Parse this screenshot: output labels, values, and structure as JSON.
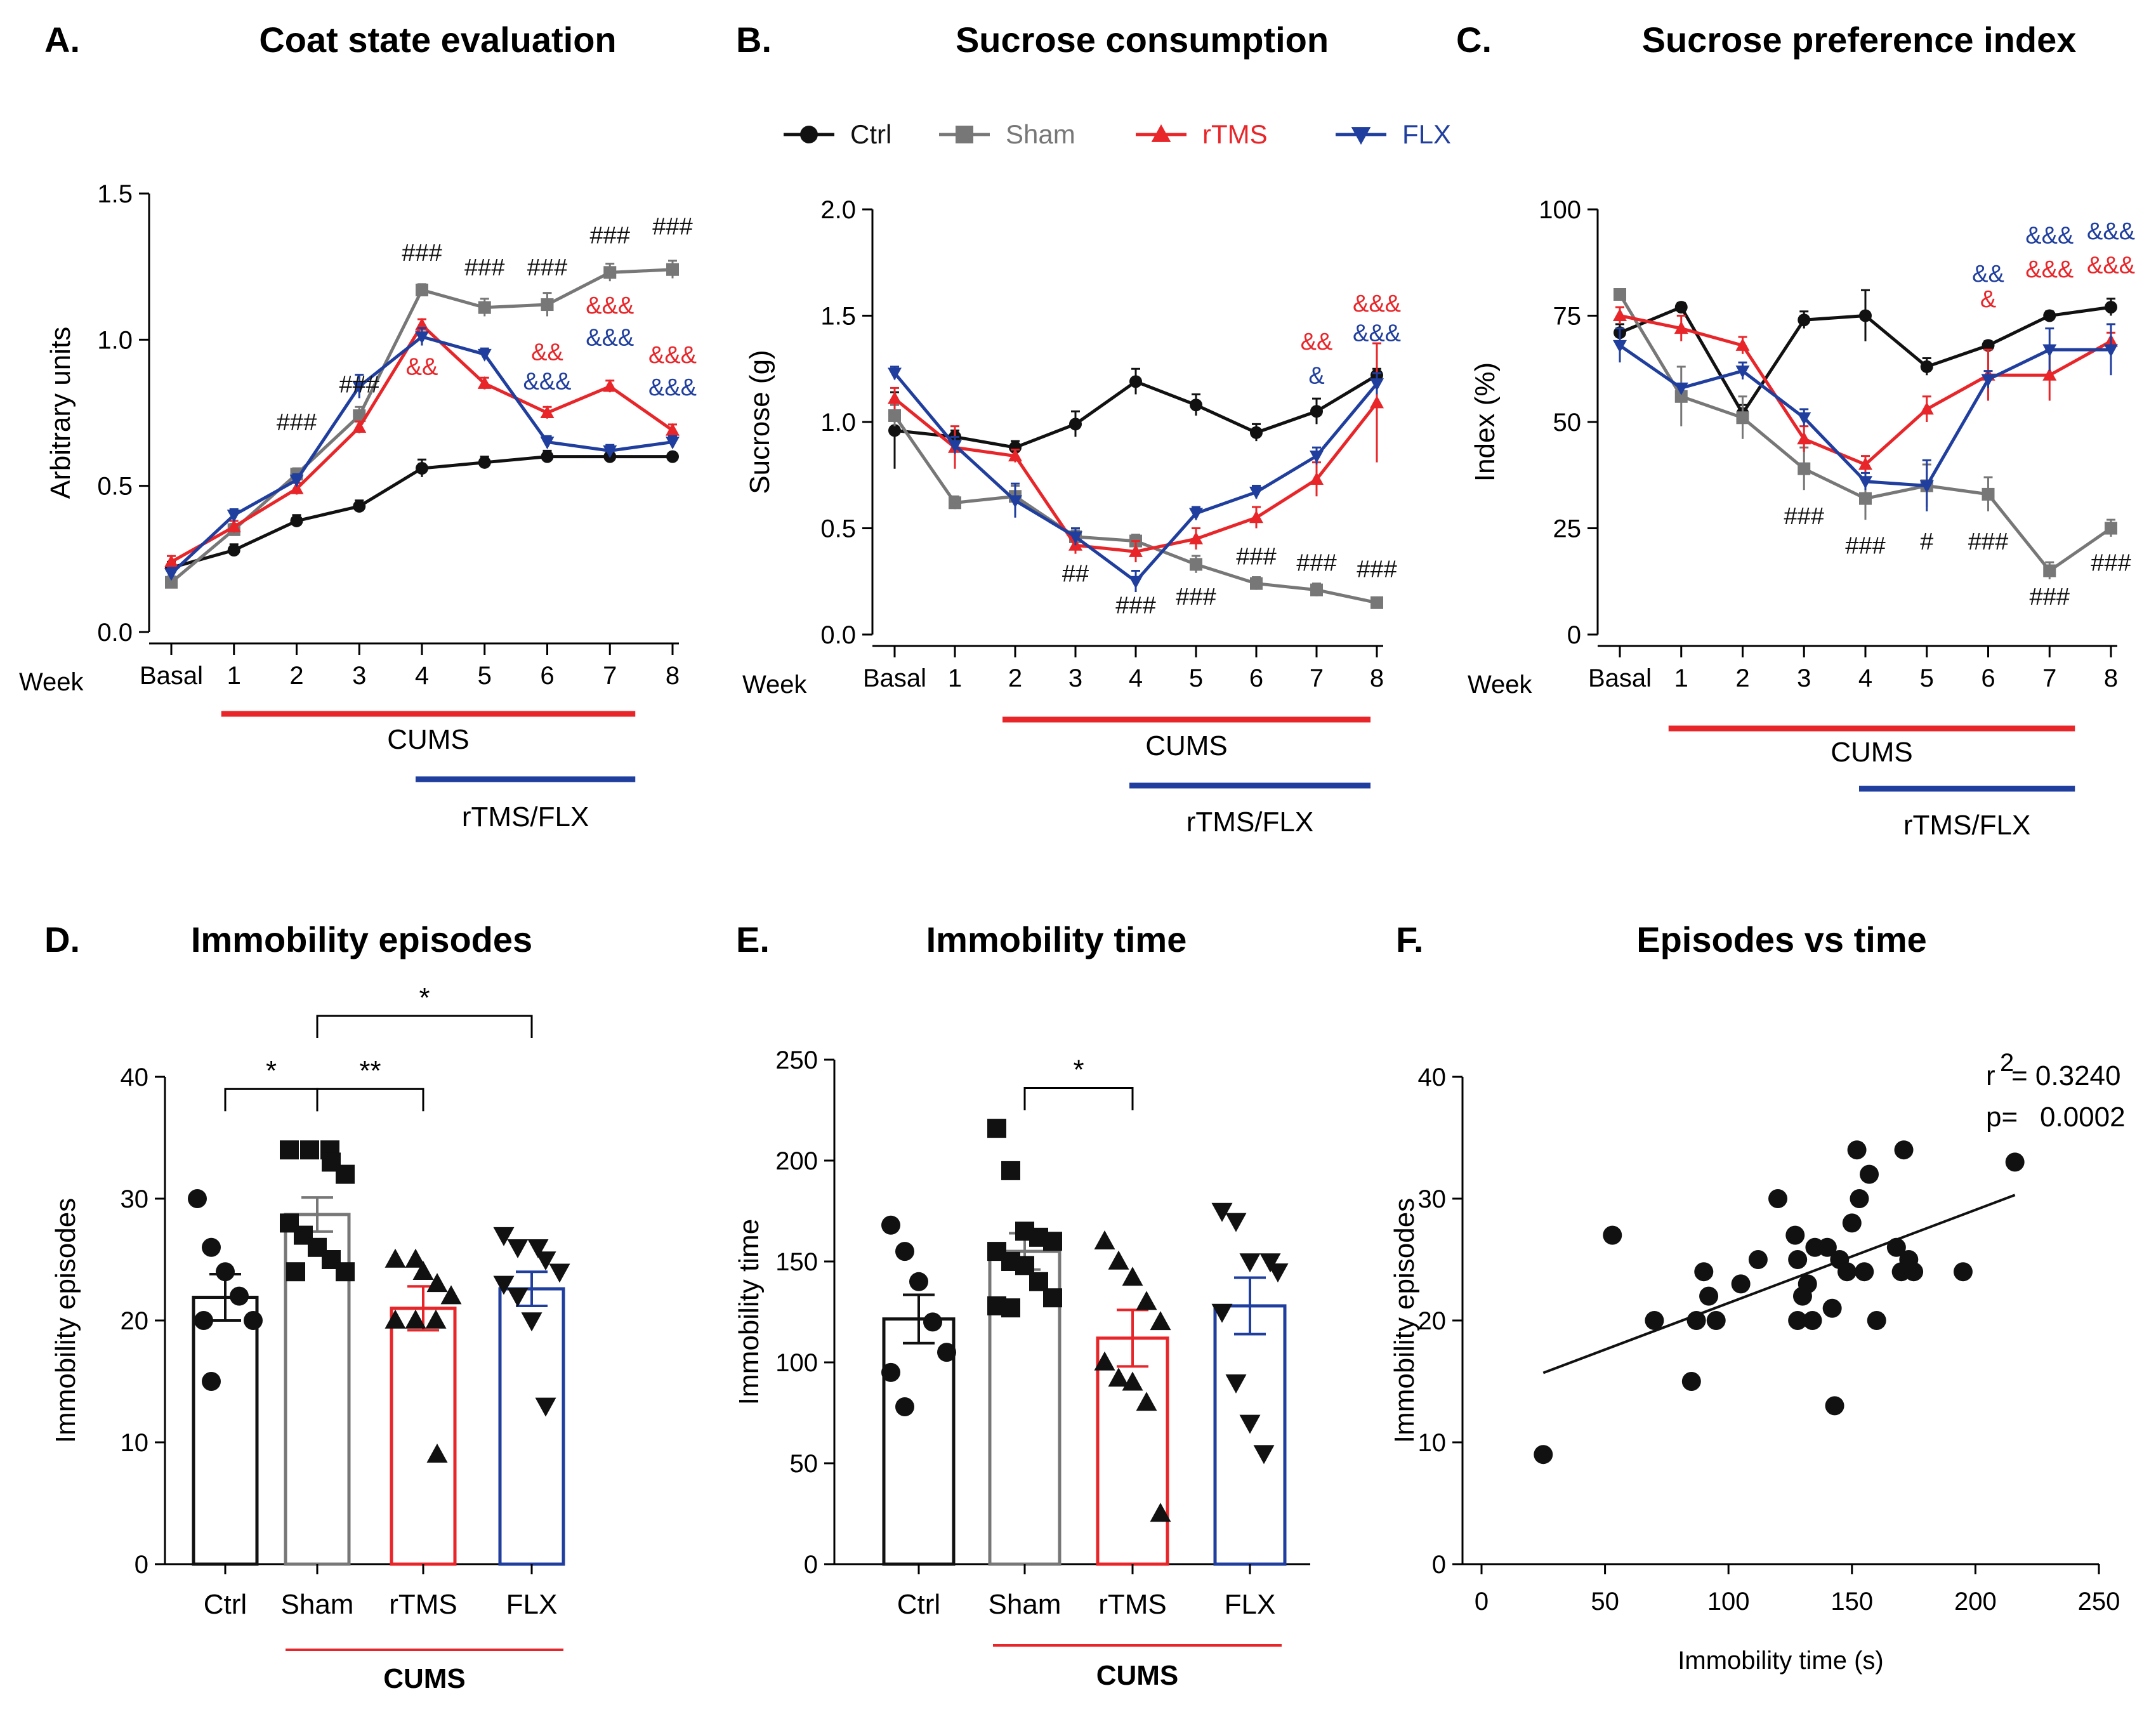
{
  "colors": {
    "ctrl": "#111111",
    "sham": "#777777",
    "rtms": "#e8262a",
    "flx": "#1f3e9e",
    "axis": "#000000"
  },
  "legend": [
    {
      "key": "ctrl",
      "label": "Ctrl"
    },
    {
      "key": "sham",
      "label": "Sham"
    },
    {
      "key": "rtms",
      "label": "rTMS"
    },
    {
      "key": "flx",
      "label": "FLX"
    }
  ],
  "chart_data": [
    {
      "id": "A",
      "panel_label": "A.",
      "type": "line",
      "title": "Coat state evaluation",
      "xlabel": "Week",
      "ylabel": "Arbitrary units",
      "categories": [
        "Basal",
        "1",
        "2",
        "3",
        "4",
        "5",
        "6",
        "7",
        "8"
      ],
      "ylim": [
        0,
        1.5
      ],
      "yticks": [
        0.0,
        0.5,
        1.0,
        1.5
      ],
      "ytick_labels": [
        "0.0",
        "0.5",
        "1.0",
        "1.5"
      ],
      "series": [
        {
          "name": "Ctrl",
          "key": "ctrl",
          "values": [
            0.22,
            0.28,
            0.38,
            0.43,
            0.56,
            0.58,
            0.6,
            0.6,
            0.6
          ],
          "errors": [
            0.02,
            0.02,
            0.02,
            0.02,
            0.03,
            0.02,
            0.02,
            0.02,
            0.01
          ]
        },
        {
          "name": "Sham",
          "key": "sham",
          "values": [
            0.17,
            0.35,
            0.54,
            0.74,
            1.17,
            1.11,
            1.12,
            1.23,
            1.24
          ],
          "errors": [
            0.02,
            0.02,
            0.02,
            0.03,
            0.02,
            0.03,
            0.04,
            0.03,
            0.03
          ]
        },
        {
          "name": "rTMS",
          "key": "rtms",
          "values": [
            0.24,
            0.36,
            0.49,
            0.7,
            1.05,
            0.85,
            0.75,
            0.84,
            0.69
          ],
          "errors": [
            0.02,
            0.02,
            0.02,
            0.02,
            0.02,
            0.02,
            0.02,
            0.02,
            0.02
          ]
        },
        {
          "name": "FLX",
          "key": "flx",
          "values": [
            0.2,
            0.4,
            0.52,
            0.84,
            1.01,
            0.95,
            0.65,
            0.62,
            0.65
          ],
          "errors": [
            0.02,
            0.02,
            0.02,
            0.04,
            0.03,
            0.02,
            0.02,
            0.02,
            0.02
          ]
        }
      ],
      "annotations": [
        {
          "text": "###",
          "x": "2",
          "y": 0.69,
          "color": "ctrl"
        },
        {
          "text": "###",
          "x": "3",
          "y": 0.82,
          "color": "ctrl"
        },
        {
          "text": "###",
          "x": "4",
          "y": 1.27,
          "color": "ctrl"
        },
        {
          "text": "###",
          "x": "5",
          "y": 1.22,
          "color": "ctrl"
        },
        {
          "text": "###",
          "x": "6",
          "y": 1.22,
          "color": "ctrl"
        },
        {
          "text": "###",
          "x": "7",
          "y": 1.33,
          "color": "ctrl"
        },
        {
          "text": "###",
          "x": "8",
          "y": 1.36,
          "color": "ctrl"
        },
        {
          "text": "&&",
          "x": "4",
          "y": 0.88,
          "color": "rtms"
        },
        {
          "text": "&&",
          "x": "6",
          "y": 0.93,
          "color": "rtms"
        },
        {
          "text": "&&&",
          "x": "6",
          "y": 0.83,
          "color": "flx"
        },
        {
          "text": "&&&",
          "x": "7",
          "y": 1.09,
          "color": "rtms"
        },
        {
          "text": "&&&",
          "x": "7",
          "y": 0.98,
          "color": "flx"
        },
        {
          "text": "&&&",
          "x": "8",
          "y": 0.92,
          "color": "rtms"
        },
        {
          "text": "&&&",
          "x": "8",
          "y": 0.81,
          "color": "flx"
        }
      ],
      "bars": [
        {
          "label": "CUMS",
          "from": "1",
          "to": "7",
          "color": "rtms"
        },
        {
          "label": "rTMS/FLX",
          "from": "4",
          "to": "7",
          "color": "flx"
        }
      ]
    },
    {
      "id": "B",
      "panel_label": "B.",
      "type": "line",
      "title": "Sucrose consumption",
      "xlabel": "Week",
      "ylabel": "Sucrose (g)",
      "categories": [
        "Basal",
        "1",
        "2",
        "3",
        "4",
        "5",
        "6",
        "7",
        "8"
      ],
      "ylim": [
        0,
        2.0
      ],
      "yticks": [
        0.0,
        0.5,
        1.0,
        1.5,
        2.0
      ],
      "ytick_labels": [
        "0.0",
        "0.5",
        "1.0",
        "1.5",
        "2.0"
      ],
      "series": [
        {
          "name": "Ctrl",
          "key": "ctrl",
          "values": [
            0.96,
            0.93,
            0.88,
            0.99,
            1.19,
            1.08,
            0.95,
            1.05,
            1.22
          ],
          "errors": [
            0.18,
            0.03,
            0.03,
            0.06,
            0.06,
            0.05,
            0.04,
            0.06,
            0.03
          ]
        },
        {
          "name": "Sham",
          "key": "sham",
          "values": [
            1.03,
            0.62,
            0.65,
            0.46,
            0.44,
            0.33,
            0.24,
            0.21,
            0.15
          ],
          "errors": [
            0.05,
            0.03,
            0.05,
            0.03,
            0.03,
            0.04,
            0.03,
            0.03,
            0.02
          ]
        },
        {
          "name": "rTMS",
          "key": "rtms",
          "values": [
            1.11,
            0.88,
            0.84,
            0.42,
            0.39,
            0.45,
            0.55,
            0.73,
            1.09
          ],
          "errors": [
            0.05,
            0.1,
            0.03,
            0.04,
            0.05,
            0.05,
            0.05,
            0.08,
            0.28
          ]
        },
        {
          "name": "FLX",
          "key": "flx",
          "values": [
            1.23,
            0.89,
            0.63,
            0.46,
            0.25,
            0.57,
            0.67,
            0.84,
            1.18
          ],
          "errors": [
            0.03,
            0.04,
            0.08,
            0.04,
            0.05,
            0.03,
            0.03,
            0.04,
            0.05
          ]
        }
      ],
      "annotations": [
        {
          "text": "##",
          "x": "3",
          "y": 0.25,
          "color": "ctrl"
        },
        {
          "text": "###",
          "x": "4",
          "y": 0.1,
          "color": "ctrl"
        },
        {
          "text": "###",
          "x": "5",
          "y": 0.14,
          "color": "ctrl"
        },
        {
          "text": "###",
          "x": "6",
          "y": 0.33,
          "color": "ctrl"
        },
        {
          "text": "###",
          "x": "7",
          "y": 0.3,
          "color": "ctrl"
        },
        {
          "text": "###",
          "x": "8",
          "y": 0.27,
          "color": "ctrl"
        },
        {
          "text": "&&",
          "x": "7",
          "y": 1.34,
          "color": "rtms"
        },
        {
          "text": "&",
          "x": "7",
          "y": 1.18,
          "color": "flx"
        },
        {
          "text": "&&&",
          "x": "8",
          "y": 1.52,
          "color": "rtms"
        },
        {
          "text": "&&&",
          "x": "8",
          "y": 1.38,
          "color": "flx"
        }
      ],
      "bars": [
        {
          "label": "CUMS",
          "from": "2",
          "to": "8",
          "color": "rtms"
        },
        {
          "label": "rTMS/FLX",
          "from": "4",
          "to": "8",
          "color": "flx"
        }
      ]
    },
    {
      "id": "C",
      "panel_label": "C.",
      "type": "line",
      "title": "Sucrose preference index",
      "xlabel": "Week",
      "ylabel": "Index (%)",
      "categories": [
        "Basal",
        "1",
        "2",
        "3",
        "4",
        "5",
        "6",
        "7",
        "8"
      ],
      "ylim": [
        0,
        100
      ],
      "yticks": [
        0,
        25,
        50,
        75,
        100
      ],
      "ytick_labels": [
        "0",
        "25",
        "50",
        "75",
        "100"
      ],
      "series": [
        {
          "name": "Ctrl",
          "key": "ctrl",
          "values": [
            71,
            77,
            52,
            74,
            75,
            63,
            68,
            75,
            77
          ],
          "errors": [
            2,
            1,
            2,
            2,
            6,
            2,
            1,
            1,
            2
          ]
        },
        {
          "name": "Sham",
          "key": "sham",
          "values": [
            80,
            56,
            51,
            39,
            32,
            35,
            33,
            15,
            25
          ],
          "errors": [
            1,
            7,
            5,
            5,
            5,
            5,
            4,
            2,
            2
          ]
        },
        {
          "name": "rTMS",
          "key": "rtms",
          "values": [
            75,
            72,
            68,
            46,
            40,
            53,
            61,
            61,
            69
          ],
          "errors": [
            2,
            3,
            2,
            3,
            2,
            3,
            6,
            6,
            2
          ]
        },
        {
          "name": "FLX",
          "key": "flx",
          "values": [
            68,
            58,
            62,
            51,
            36,
            35,
            60,
            67,
            67
          ],
          "errors": [
            4,
            1,
            2,
            2,
            2,
            6,
            2,
            5,
            6
          ]
        }
      ],
      "annotations": [
        {
          "text": "###",
          "x": "3",
          "y": 26,
          "color": "ctrl"
        },
        {
          "text": "###",
          "x": "4",
          "y": 19,
          "color": "ctrl"
        },
        {
          "text": "#",
          "x": "5",
          "y": 20,
          "color": "ctrl"
        },
        {
          "text": "###",
          "x": "6",
          "y": 20,
          "color": "ctrl"
        },
        {
          "text": "###",
          "x": "7",
          "y": 7,
          "color": "ctrl"
        },
        {
          "text": "###",
          "x": "8",
          "y": 15,
          "color": "ctrl"
        },
        {
          "text": "&&",
          "x": "6",
          "y": 83,
          "color": "flx"
        },
        {
          "text": "&",
          "x": "6",
          "y": 77,
          "color": "rtms"
        },
        {
          "text": "&&&",
          "x": "7",
          "y": 92,
          "color": "flx"
        },
        {
          "text": "&&&",
          "x": "7",
          "y": 84,
          "color": "rtms"
        },
        {
          "text": "&&&",
          "x": "8",
          "y": 93,
          "color": "flx"
        },
        {
          "text": "&&&",
          "x": "8",
          "y": 85,
          "color": "rtms"
        }
      ],
      "bars": [
        {
          "label": "CUMS",
          "from": "1",
          "to": "7",
          "color": "rtms"
        },
        {
          "label": "rTMS/FLX",
          "from": "4",
          "to": "7",
          "color": "flx"
        }
      ]
    },
    {
      "id": "D",
      "panel_label": "D.",
      "type": "bar",
      "title": "Immobility episodes",
      "xlabel": "",
      "ylabel": "Immobility episodes",
      "categories": [
        "Ctrl",
        "Sham",
        "rTMS",
        "FLX"
      ],
      "ylim": [
        0,
        40
      ],
      "yticks": [
        0,
        10,
        20,
        30,
        40
      ],
      "ytick_labels": [
        "0",
        "10",
        "20",
        "30",
        "40"
      ],
      "groups": [
        {
          "name": "Ctrl",
          "key": "ctrl",
          "mean": 21.9,
          "sem": 1.9,
          "marker": "circle",
          "points": [
            30,
            26,
            24,
            22,
            20,
            20,
            15
          ]
        },
        {
          "name": "Sham",
          "key": "sham",
          "mean": 28.7,
          "sem": 1.4,
          "marker": "square",
          "points": [
            34,
            34,
            34,
            33,
            32,
            28,
            27,
            26,
            25,
            24,
            24
          ]
        },
        {
          "name": "rTMS",
          "key": "rtms",
          "mean": 21.0,
          "sem": 1.8,
          "marker": "triangle-up",
          "points": [
            25,
            25,
            24,
            23,
            22,
            20,
            20,
            20,
            9
          ]
        },
        {
          "name": "FLX",
          "key": "flx",
          "mean": 22.6,
          "sem": 1.4,
          "marker": "triangle-down",
          "points": [
            27,
            26,
            26,
            25,
            24,
            23,
            22,
            20,
            13
          ]
        }
      ],
      "brackets": [
        {
          "from": "Ctrl",
          "to": "Sham",
          "y": 39,
          "text": "*"
        },
        {
          "from": "Sham",
          "to": "rTMS",
          "y": 39,
          "text": "**"
        },
        {
          "from": "Sham",
          "to": "FLX",
          "y": 45,
          "text": "*"
        }
      ],
      "bars": [
        {
          "label": "CUMS",
          "from": "Sham",
          "to": "FLX",
          "color": "rtms"
        }
      ]
    },
    {
      "id": "E",
      "panel_label": "E.",
      "type": "bar",
      "title": "Immobility time",
      "xlabel": "",
      "ylabel": "Immobility time",
      "categories": [
        "Ctrl",
        "Sham",
        "rTMS",
        "FLX"
      ],
      "ylim": [
        0,
        250
      ],
      "yticks": [
        0,
        50,
        100,
        150,
        200,
        250
      ],
      "ytick_labels": [
        "0",
        "50",
        "100",
        "150",
        "200",
        "250"
      ],
      "groups": [
        {
          "name": "Ctrl",
          "key": "ctrl",
          "mean": 121.5,
          "sem": 12,
          "marker": "circle",
          "points": [
            168,
            155,
            140,
            120,
            105,
            95,
            78
          ]
        },
        {
          "name": "Sham",
          "key": "sham",
          "mean": 155,
          "sem": 9,
          "marker": "square",
          "points": [
            216,
            195,
            165,
            162,
            160,
            155,
            150,
            148,
            140,
            132,
            128,
            127
          ]
        },
        {
          "name": "rTMS",
          "key": "rtms",
          "mean": 112,
          "sem": 14,
          "marker": "triangle-up",
          "points": [
            160,
            150,
            142,
            130,
            120,
            100,
            92,
            90,
            80,
            25
          ]
        },
        {
          "name": "FLX",
          "key": "flx",
          "mean": 128,
          "sem": 14,
          "marker": "triangle-down",
          "points": [
            175,
            170,
            150,
            150,
            145,
            125,
            90,
            70,
            55
          ]
        }
      ],
      "brackets": [
        {
          "from": "Sham",
          "to": "rTMS",
          "y": 236,
          "text": "*"
        }
      ],
      "bars": [
        {
          "label": "CUMS",
          "from": "Sham",
          "to": "FLX",
          "color": "rtms"
        }
      ]
    },
    {
      "id": "F",
      "panel_label": "F.",
      "type": "scatter",
      "title": "Episodes vs time",
      "xlabel": "Immobility time (s)",
      "ylabel": "Immobility episodes",
      "xlim": [
        0,
        250
      ],
      "xticks": [
        0,
        50,
        100,
        150,
        200,
        250
      ],
      "xtick_labels": [
        "0",
        "50",
        "100",
        "150",
        "200",
        "250"
      ],
      "ylim": [
        0,
        40
      ],
      "yticks": [
        0,
        10,
        20,
        30,
        40
      ],
      "ytick_labels": [
        "0",
        "10",
        "20",
        "30",
        "40"
      ],
      "points": [
        [
          25,
          9
        ],
        [
          53,
          27
        ],
        [
          70,
          20
        ],
        [
          85,
          15
        ],
        [
          87,
          20
        ],
        [
          90,
          24
        ],
        [
          92,
          22
        ],
        [
          95,
          20
        ],
        [
          105,
          23
        ],
        [
          112,
          25
        ],
        [
          120,
          30
        ],
        [
          127,
          27
        ],
        [
          128,
          25
        ],
        [
          128,
          20
        ],
        [
          130,
          22
        ],
        [
          132,
          23
        ],
        [
          134,
          20
        ],
        [
          140,
          26
        ],
        [
          142,
          21
        ],
        [
          143,
          13
        ],
        [
          145,
          25
        ],
        [
          148,
          24
        ],
        [
          150,
          28
        ],
        [
          152,
          34
        ],
        [
          153,
          30
        ],
        [
          155,
          24
        ],
        [
          157,
          32
        ],
        [
          160,
          20
        ],
        [
          168,
          26
        ],
        [
          170,
          24
        ],
        [
          171,
          34
        ],
        [
          173,
          25
        ],
        [
          175,
          24
        ],
        [
          195,
          24
        ],
        [
          216,
          33
        ],
        [
          135,
          26
        ]
      ],
      "regression": {
        "x": [
          25,
          216
        ],
        "y": [
          15.7,
          30.3
        ]
      },
      "stats": {
        "r2_prefix": "r",
        "r2_sup": "2",
        "r2_value": " = 0.3240",
        "p_label": "p=",
        "p_value": "0.0002"
      }
    }
  ]
}
